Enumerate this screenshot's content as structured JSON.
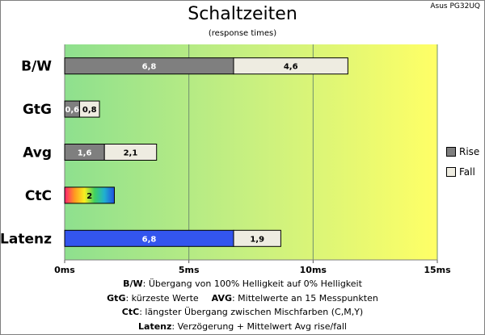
{
  "header": {
    "title": "Schaltzeiten",
    "subtitle": "(response times)",
    "model": "Asus PG32UQ"
  },
  "chart_data": {
    "type": "bar",
    "orientation": "horizontal",
    "stacked": true,
    "categories": [
      "B/W",
      "GtG",
      "Avg",
      "CtC",
      "Latenz"
    ],
    "series": [
      {
        "name": "Rise",
        "values": [
          6.8,
          0.6,
          1.6,
          2,
          6.8
        ],
        "labels": [
          "6,8",
          "0,6",
          "1,6",
          "2",
          "6,8"
        ],
        "color": "#7f7f7f"
      },
      {
        "name": "Fall",
        "values": [
          4.6,
          0.8,
          2.1,
          null,
          1.9
        ],
        "labels": [
          "4,6",
          "0,8",
          "2,1",
          "",
          "1,9"
        ],
        "color": "#eeece1"
      }
    ],
    "xlim": [
      0,
      15
    ],
    "xticks": [
      0,
      5,
      10,
      15
    ],
    "xtick_labels": [
      "0ms",
      "5ms",
      "10ms",
      "15ms"
    ],
    "grid": true,
    "legend_position": "right",
    "background_gradient": [
      "#8ee08e",
      "#c8f080",
      "#ffff66"
    ],
    "special_fills": {
      "CtC": "rainbow",
      "Latenz": "#3355ee"
    }
  },
  "notes": {
    "l1_key": "B/W",
    "l1_text": ":  Übergang von 100% Helligkeit auf 0% Helligkeit",
    "l2_key_a": "GtG",
    "l2_text_a": ": kürzeste  Werte",
    "l2_key_b": "AVG",
    "l2_text_b": ": Mittelwerte  an 15 Messpunkten",
    "l3_key": "CtC",
    "l3_text": ": längster Übergang  zwischen Mischfarben  (C,M,Y)",
    "l4_key": "Latenz",
    "l4_text": ": Verzögerung  + Mittelwert  Avg rise/fall"
  }
}
